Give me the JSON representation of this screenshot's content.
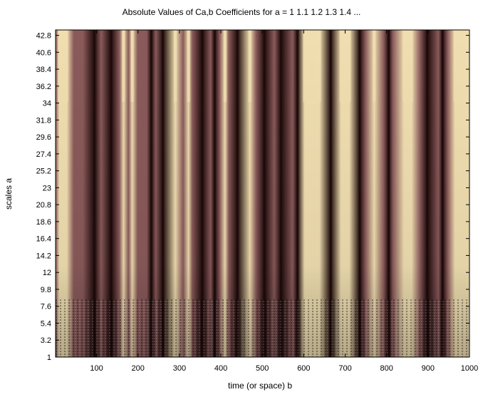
{
  "chart_data": {
    "type": "heatmap",
    "title": "Absolute Values of Ca,b Coefficients for a = 1 1.1 1.2 1.3 1.4 ...",
    "xlabel": "time (or space) b",
    "ylabel": "scales a",
    "x_ticks": [
      "100",
      "200",
      "300",
      "400",
      "500",
      "600",
      "700",
      "800",
      "900",
      "1000"
    ],
    "y_ticks": [
      "1",
      "3.2",
      "5.4",
      "7.6",
      "9.8",
      "12",
      "14.2",
      "16.4",
      "18.6",
      "20.8",
      "23",
      "25.2",
      "27.4",
      "29.6",
      "31.8",
      "34",
      "36.2",
      "38.4",
      "40.6",
      "42.8"
    ],
    "xlim": [
      1,
      1000
    ],
    "ylim": [
      1,
      43.5
    ],
    "colormap": "pink",
    "colors": {
      "dark": "#1e0a0a",
      "mid": "#8a5a5a",
      "light": "#f0deb0"
    },
    "bright_columns_b": [
      10,
      28,
      165,
      186,
      290,
      322,
      410,
      470,
      602,
      622,
      638,
      690,
      710,
      770,
      842,
      860,
      965,
      985
    ],
    "dark_columns_b": [
      95,
      135,
      232,
      260,
      355,
      385,
      440,
      505,
      545,
      585,
      665,
      735,
      805,
      898,
      935
    ]
  }
}
